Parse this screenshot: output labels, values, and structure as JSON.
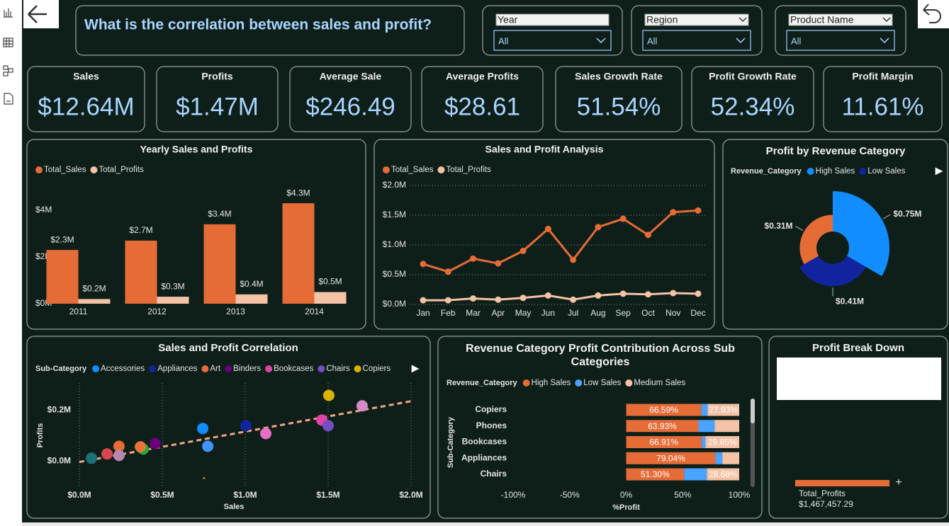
{
  "header": {
    "title": "What is the correlation between sales and profit?"
  },
  "filters": [
    {
      "label": "Year",
      "value": "All"
    },
    {
      "label": "Region",
      "value": "All"
    },
    {
      "label": "Product Name",
      "value": "All"
    }
  ],
  "kpis": [
    {
      "label": "Sales",
      "value": "$12.64M"
    },
    {
      "label": "Profits",
      "value": "$1.47M"
    },
    {
      "label": "Average Sale",
      "value": "$246.49"
    },
    {
      "label": "Average Profits",
      "value": "$28.61"
    },
    {
      "label": "Sales Growth Rate",
      "value": "51.54%"
    },
    {
      "label": "Profit Growth Rate",
      "value": "52.34%"
    },
    {
      "label": "Profit Margin",
      "value": "11.61%"
    }
  ],
  "chart_data": [
    {
      "type": "bar",
      "title": "Yearly Sales and Profits",
      "categories": [
        "2011",
        "2012",
        "2013",
        "2014"
      ],
      "series": [
        {
          "name": "Total_Sales",
          "color": "#e66c37",
          "values": [
            2300000,
            2700000,
            3400000,
            4300000
          ],
          "value_labels": [
            "$2.3M",
            "$2.7M",
            "$3.4M",
            "$4.3M"
          ]
        },
        {
          "name": "Total_Profits",
          "color": "#f4c2a5",
          "values": [
            200000,
            300000,
            400000,
            500000
          ],
          "value_labels": [
            "$0.2M",
            "$0.3M",
            "$0.4M",
            "$0.5M"
          ]
        }
      ],
      "ylim": [
        0,
        5000000
      ],
      "yticks": [
        {
          "value": 0,
          "label": "$0M"
        },
        {
          "value": 2000000,
          "label": "$2M"
        },
        {
          "value": 4000000,
          "label": "$4M"
        }
      ],
      "grid": false
    },
    {
      "type": "line",
      "title": "Sales and Profit Analysis",
      "categories": [
        "Jan",
        "Feb",
        "Mar",
        "Apr",
        "May",
        "Jun",
        "Jul",
        "Aug",
        "Sep",
        "Oct",
        "Nov",
        "Dec"
      ],
      "series": [
        {
          "name": "Total_Sales",
          "color": "#e66c37",
          "values": [
            680000,
            550000,
            770000,
            690000,
            900000,
            1270000,
            750000,
            1300000,
            1440000,
            1170000,
            1550000,
            1580000
          ]
        },
        {
          "name": "Total_Profits",
          "color": "#f4c2a5",
          "values": [
            70000,
            70000,
            100000,
            80000,
            110000,
            150000,
            80000,
            150000,
            180000,
            170000,
            190000,
            180000
          ]
        }
      ],
      "ylim": [
        0,
        2000000
      ],
      "yticks": [
        {
          "value": 0,
          "label": "$0.0M"
        },
        {
          "value": 500000,
          "label": "$0.5M"
        },
        {
          "value": 1000000,
          "label": "$1.0M"
        },
        {
          "value": 1500000,
          "label": "$1.5M"
        },
        {
          "value": 2000000,
          "label": "$2.0M"
        }
      ],
      "grid": true
    },
    {
      "type": "pie",
      "title": "Profit by Revenue Category",
      "legend_title": "Revenue_Category",
      "categories": [
        "High Sales",
        "Low Sales",
        null
      ],
      "colors": [
        "#118dff",
        "#12239e",
        "#e66c37"
      ],
      "values": [
        750000,
        410000,
        310000
      ],
      "value_labels": [
        "$0.75M",
        "$0.41M",
        "$0.31M"
      ]
    },
    {
      "type": "scatter",
      "title": "Sales and Profit Correlation",
      "legend_title": "Sub-Category",
      "xlabel": "Sales",
      "ylabel": "Profits",
      "series": [
        {
          "name": "Accessories",
          "color": "#118dff",
          "x": [
            744000
          ],
          "values": [
            128000
          ]
        },
        {
          "name": "Appliances",
          "color": "#12239e",
          "x": [
            1004000
          ],
          "values": [
            139000
          ]
        },
        {
          "name": "Art",
          "color": "#e66c37",
          "x": [
            239000
          ],
          "values": [
            58000
          ]
        },
        {
          "name": "Binders",
          "color": "#6b007b",
          "x": [
            457000
          ],
          "values": [
            69000
          ]
        },
        {
          "name": "Bookcases",
          "color": "#e044a7",
          "x": [
            1462000
          ],
          "values": [
            161000
          ]
        },
        {
          "name": "Chairs",
          "color": "#744ec2",
          "x": [
            1500000
          ],
          "values": [
            139000
          ]
        },
        {
          "name": "Copiers",
          "color": "#d9b300",
          "x": [
            1504000
          ],
          "values": [
            258000
          ]
        },
        {
          "color": "#d64550",
          "x": [
            167000
          ],
          "values": [
            28000
          ]
        },
        {
          "color": "#197278",
          "x": [
            73000
          ],
          "values": [
            11000
          ]
        },
        {
          "color": "#1aab40",
          "x": [
            385000
          ],
          "values": [
            47000
          ]
        },
        {
          "color": "#4092ff",
          "x": [
            774000
          ],
          "values": [
            58000
          ]
        },
        {
          "color": "#b887ad",
          "x": [
            239000
          ],
          "values": [
            22000
          ]
        },
        {
          "color": "#d48cc9",
          "x": [
            1705000
          ],
          "values": [
            217000
          ]
        },
        {
          "color": "#e46fc4",
          "x": [
            1124000
          ],
          "values": [
            108000
          ]
        },
        {
          "color": "#e8743b",
          "x": [
            368000,
            752000
          ],
          "values": [
            56000,
            -67000
          ]
        }
      ],
      "xlim": [
        0,
        2000000
      ],
      "xticks": [
        {
          "value": 0,
          "label": "$0.0M"
        },
        {
          "value": 500000,
          "label": "$0.5M"
        },
        {
          "value": 1000000,
          "label": "$1.0M"
        },
        {
          "value": 1500000,
          "label": "$1.5M"
        },
        {
          "value": 2000000,
          "label": "$2.0M"
        }
      ],
      "ylim": [
        -80000,
        290000
      ],
      "yticks": [
        {
          "value": 0,
          "label": "$0.0M"
        },
        {
          "value": 200000,
          "label": "$0.2M"
        }
      ],
      "grid": true,
      "trendline": true
    },
    {
      "type": "bar",
      "orientation": "horizontal",
      "stacked": true,
      "title": "Revenue Category Profit Contribution Across Sub Categories",
      "legend_title": "Revenue_Category",
      "xlabel": "%Profit",
      "ylabel": "Sub-Category",
      "categories": [
        "Copiers",
        "Phones",
        "Bookcases",
        "Appliances",
        "Chairs"
      ],
      "series": [
        {
          "name": "High Sales",
          "color": "#e66c37",
          "values": [
            66.59,
            63.93,
            66.91,
            79.04,
            51.3
          ],
          "value_labels": [
            "66.59%",
            "63.93%",
            "66.91%",
            "79.04%",
            "51.30%"
          ]
        },
        {
          "name": "Low Sales",
          "color": "#4aa3ff",
          "values": [
            5.48,
            14.4,
            3.24,
            6.0,
            20.02
          ]
        },
        {
          "name": "Medium Sales",
          "color": "#f4c2a5",
          "values": [
            27.93,
            21.67,
            29.85,
            14.96,
            28.68
          ],
          "value_labels": [
            "27.93%",
            null,
            "29.85%",
            null,
            "28.68%"
          ]
        }
      ],
      "xlim": [
        -100,
        100
      ],
      "xticks": [
        {
          "value": -100,
          "label": "-100%"
        },
        {
          "value": -50,
          "label": "-50%"
        },
        {
          "value": 0,
          "label": "0%"
        },
        {
          "value": 50,
          "label": "50%"
        },
        {
          "value": 100,
          "label": "100%"
        }
      ]
    }
  ],
  "breakdown": {
    "title": "Profit Break Down",
    "label": "Total_Profits",
    "value": "$1,467,457.29"
  }
}
